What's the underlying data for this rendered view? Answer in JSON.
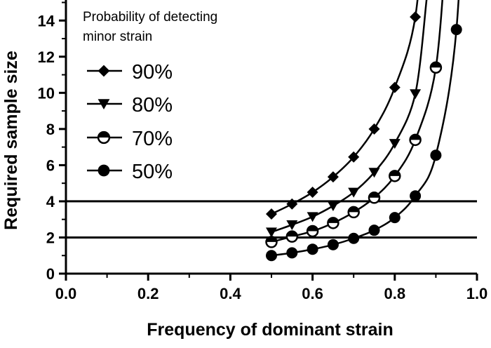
{
  "chart_data": {
    "type": "line",
    "xlabel": "Frequency of dominant strain",
    "ylabel": "Required sample size",
    "xlim": [
      0,
      1
    ],
    "ylim": [
      0,
      15
    ],
    "x_ticks": [
      "0.0",
      "0.2",
      "0.4",
      "0.6",
      "0.8",
      "1.0"
    ],
    "y_ticks": [
      "0",
      "2",
      "4",
      "6",
      "8",
      "10",
      "12",
      "14"
    ],
    "legend_title": "Probability of detecting minor strain",
    "legend_title_lines": [
      "Probability of detecting",
      "minor strain"
    ],
    "legend_position": "top-left",
    "reference_lines": [
      2,
      4
    ],
    "series": [
      {
        "name": "90%",
        "marker": "diamond",
        "x": [
          0.5,
          0.55,
          0.6,
          0.65,
          0.7,
          0.75,
          0.8,
          0.85
        ],
        "y": [
          3.3,
          3.85,
          4.5,
          5.35,
          6.45,
          8.0,
          10.3,
          14.2
        ]
      },
      {
        "name": "80%",
        "marker": "triangle-down",
        "x": [
          0.5,
          0.55,
          0.6,
          0.65,
          0.7,
          0.75,
          0.8,
          0.85
        ],
        "y": [
          2.3,
          2.7,
          3.15,
          3.75,
          4.5,
          5.6,
          7.2,
          9.95
        ]
      },
      {
        "name": "70%",
        "marker": "half-filled-circle",
        "x": [
          0.5,
          0.55,
          0.6,
          0.65,
          0.7,
          0.75,
          0.8,
          0.85,
          0.9
        ],
        "y": [
          1.75,
          2.05,
          2.35,
          2.8,
          3.4,
          4.2,
          5.4,
          7.4,
          11.4
        ]
      },
      {
        "name": "50%",
        "marker": "circle",
        "x": [
          0.5,
          0.55,
          0.6,
          0.65,
          0.7,
          0.75,
          0.8,
          0.85,
          0.9,
          0.95
        ],
        "y": [
          1.0,
          1.15,
          1.35,
          1.6,
          1.95,
          2.4,
          3.1,
          4.3,
          6.55,
          13.5
        ]
      }
    ]
  }
}
